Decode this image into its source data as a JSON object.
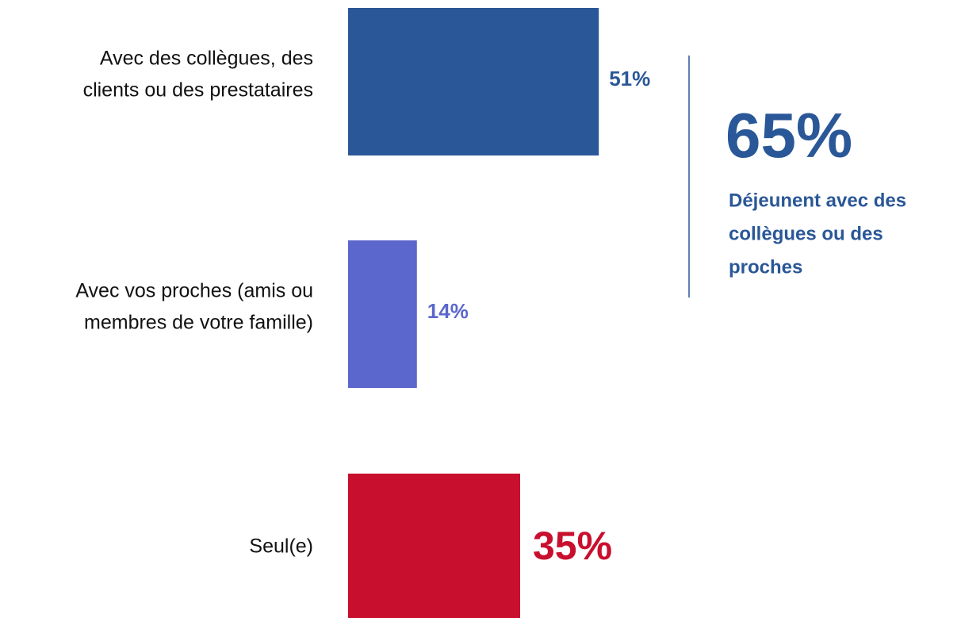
{
  "chart_data": {
    "type": "bar",
    "orientation": "horizontal",
    "categories": [
      [
        "Avec des collègues, des",
        "clients ou des prestataires"
      ],
      [
        "Avec vos proches (amis ou",
        "membres de votre famille)"
      ],
      [
        "Seul(e)"
      ]
    ],
    "values": [
      51,
      14,
      35
    ],
    "value_labels": [
      "51%",
      "14%",
      "35%"
    ],
    "colors": [
      "#2a5797",
      "#5b67cc",
      "#c8102e"
    ],
    "annotation": {
      "value": 65,
      "value_label": "65%",
      "text": [
        "Déjeunent avec des",
        "collègues ou des",
        "proches"
      ]
    }
  }
}
